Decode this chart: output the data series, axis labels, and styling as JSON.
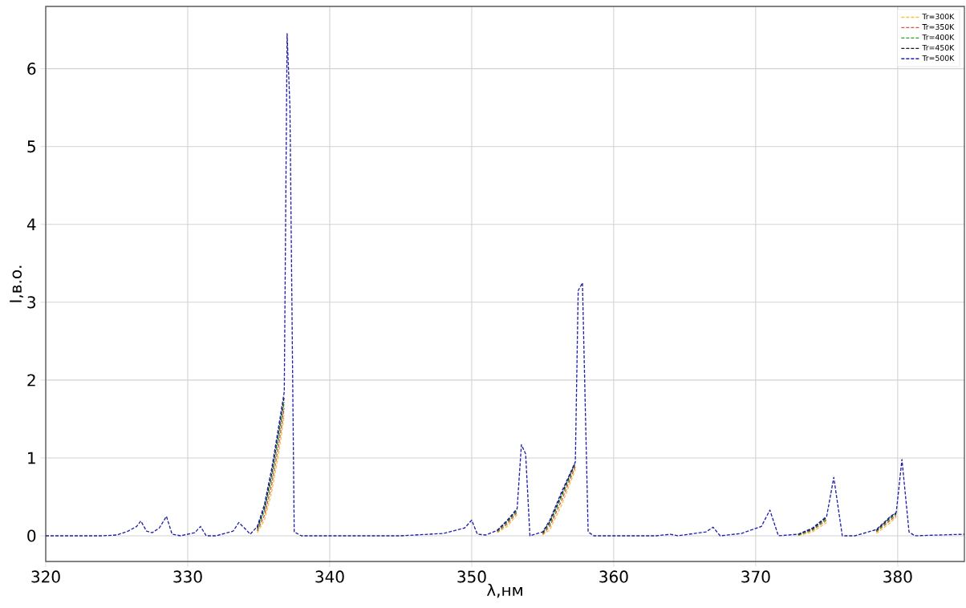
{
  "chart_data": {
    "type": "line",
    "xlabel": "λ,нм",
    "ylabel": "I,в.о.",
    "x": [
      320,
      324,
      325,
      325.8,
      326.4,
      326.7,
      327.1,
      327.5,
      328.0,
      328.5,
      328.9,
      329.5,
      330.5,
      330.9,
      331.3,
      332,
      333.2,
      333.6,
      334.1,
      334.4,
      334.9,
      335.4,
      335.9,
      336.4,
      336.8,
      337.0,
      337.2,
      337.5,
      338,
      345,
      348,
      349.5,
      350.0,
      350.4,
      351.0,
      351.8,
      352.5,
      353.2,
      353.5,
      353.8,
      354.1,
      355,
      355.5,
      356.3,
      357.3,
      357.5,
      357.8,
      358.2,
      358.6,
      363,
      364,
      364.5,
      366.5,
      367.0,
      367.5,
      369,
      370.4,
      371.0,
      371.6,
      373,
      374,
      375.0,
      375.5,
      376.1,
      377,
      378.5,
      379.5,
      379.9,
      380.3,
      380.8,
      381.2,
      384.7
    ],
    "series": [
      {
        "name": "Tr=300K",
        "color": "#f5c242",
        "x": [
          334.9,
          335.4,
          335.9,
          336.4,
          336.8,
          344,
          351.8,
          352.5,
          353.2,
          354.5,
          355,
          355.5,
          356.3,
          357.3,
          365,
          373,
          374,
          375.0,
          377,
          378.5,
          379.5,
          379.9
        ],
        "values": [
          0.04,
          0.2,
          0.55,
          1.05,
          1.55,
          null,
          0.04,
          0.12,
          0.27,
          null,
          0.01,
          0.08,
          0.38,
          0.85,
          null,
          0.0,
          0.05,
          0.17,
          null,
          0.03,
          0.17,
          0.24
        ]
      },
      {
        "name": "Tr=350K",
        "color": "#d9534f",
        "x": [
          334.9,
          335.4,
          335.9,
          336.4,
          336.8,
          344,
          351.8,
          352.5,
          353.2,
          354.5,
          355,
          355.5,
          356.3,
          357.3,
          365,
          373,
          374,
          375.0,
          377,
          378.5,
          379.5,
          379.9
        ],
        "values": [
          0.06,
          0.26,
          0.64,
          1.16,
          1.64,
          null,
          0.05,
          0.15,
          0.3,
          null,
          0.02,
          0.12,
          0.44,
          0.89,
          null,
          0.01,
          0.07,
          0.2,
          null,
          0.05,
          0.2,
          0.26
        ]
      },
      {
        "name": "Tr=400K",
        "color": "#2ca02c",
        "x": [
          334.9,
          335.4,
          335.9,
          336.4,
          336.8,
          344,
          351.8,
          352.5,
          353.2,
          354.5,
          355,
          355.5,
          356.3,
          357.3,
          365,
          373,
          374,
          375.0,
          377,
          378.5,
          379.5,
          379.9
        ],
        "values": [
          0.08,
          0.32,
          0.72,
          1.26,
          1.72,
          null,
          0.06,
          0.17,
          0.32,
          null,
          0.03,
          0.15,
          0.49,
          0.92,
          null,
          0.01,
          0.08,
          0.22,
          null,
          0.06,
          0.22,
          0.28
        ]
      },
      {
        "name": "Tr=450K",
        "color": "#1a1a1a",
        "x": [
          334.9,
          335.4,
          335.9,
          336.4,
          336.8,
          344,
          351.8,
          352.5,
          353.2,
          354.5,
          355,
          355.5,
          356.3,
          357.3,
          365,
          373,
          374,
          375.0,
          377,
          378.5,
          379.5,
          379.9
        ],
        "values": [
          0.1,
          0.36,
          0.79,
          1.34,
          1.79,
          null,
          0.07,
          0.19,
          0.34,
          null,
          0.04,
          0.18,
          0.52,
          0.94,
          null,
          0.02,
          0.09,
          0.24,
          null,
          0.07,
          0.24,
          0.29
        ]
      },
      {
        "name": "Tr=500K",
        "color": "#1f1fa8",
        "values": [
          0,
          0,
          0.01,
          0.06,
          0.12,
          0.19,
          0.06,
          0.04,
          0.1,
          0.25,
          0.02,
          0,
          0.04,
          0.12,
          0,
          0,
          0.06,
          0.17,
          0.08,
          0.02,
          0.12,
          0.4,
          0.85,
          1.4,
          1.85,
          6.45,
          5.5,
          0.05,
          0,
          0,
          0.03,
          0.1,
          0.2,
          0.02,
          0.01,
          0.07,
          0.2,
          0.35,
          1.17,
          1.05,
          0,
          0.05,
          0.2,
          0.55,
          0.95,
          3.15,
          3.25,
          0.05,
          0,
          0,
          0.02,
          0,
          0.05,
          0.11,
          0,
          0.03,
          0.12,
          0.33,
          0,
          0.02,
          0.1,
          0.25,
          0.75,
          0,
          0,
          0.08,
          0.25,
          0.3,
          0.98,
          0.05,
          0,
          0.02
        ]
      }
    ],
    "xlim": [
      320,
      384.7
    ],
    "ylim": [
      -0.33,
      6.8
    ],
    "xticks": [
      320,
      330,
      340,
      350,
      360,
      370,
      380
    ],
    "yticks": [
      0,
      1,
      2,
      3,
      4,
      5,
      6
    ],
    "grid": true,
    "legend": "top right",
    "line_style": "dashed",
    "marker": "none"
  }
}
